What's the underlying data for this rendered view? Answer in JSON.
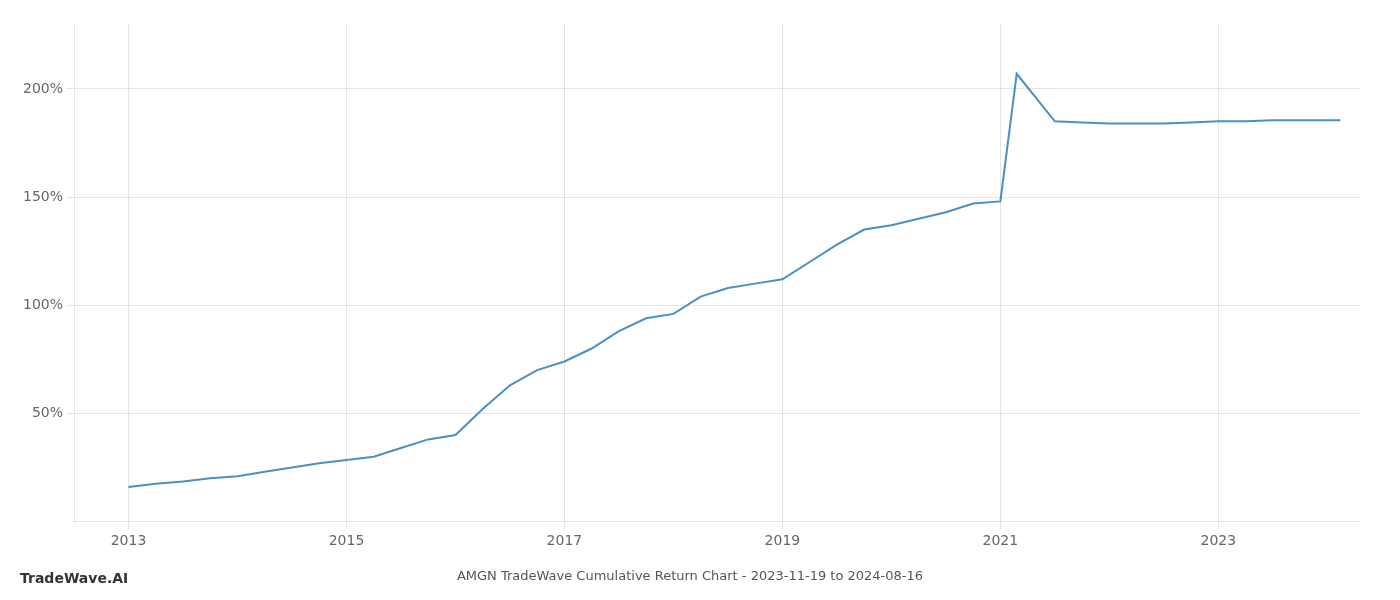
{
  "chart_data": {
    "type": "line",
    "title": "AMGN TradeWave Cumulative Return Chart - 2023-11-19 to 2024-08-16",
    "annotations": [
      "TradeWave.AI"
    ],
    "x": [
      2013.0,
      2013.25,
      2013.5,
      2013.75,
      2014.0,
      2014.25,
      2014.5,
      2014.75,
      2015.0,
      2015.25,
      2015.5,
      2015.75,
      2016.0,
      2016.25,
      2016.5,
      2016.75,
      2017.0,
      2017.25,
      2017.5,
      2017.75,
      2018.0,
      2018.25,
      2018.5,
      2018.75,
      2019.0,
      2019.25,
      2019.5,
      2019.75,
      2020.0,
      2020.25,
      2020.5,
      2020.75,
      2021.0,
      2021.15,
      2021.5,
      2021.75,
      2022.0,
      2022.25,
      2022.5,
      2022.75,
      2023.0,
      2023.25,
      2023.5,
      2023.75,
      2024.0,
      2024.12
    ],
    "values": [
      16.0,
      17.5,
      18.5,
      20.0,
      21.0,
      23.0,
      25.0,
      27.0,
      28.5,
      30.0,
      34.0,
      38.0,
      40.0,
      52.0,
      63.0,
      70.0,
      74.0,
      80.0,
      88.0,
      94.0,
      96.0,
      104.0,
      108.0,
      110.0,
      112.0,
      120.0,
      128.0,
      135.0,
      137.0,
      140.0,
      143.0,
      147.0,
      148.0,
      207.0,
      185.0,
      184.5,
      184.0,
      184.0,
      184.0,
      184.5,
      185.0,
      185.0,
      185.5,
      185.5,
      185.5,
      185.5
    ],
    "color": "#4a90c4",
    "xlim": [
      2012.5,
      2024.3
    ],
    "ylim": [
      0,
      230
    ],
    "xticks": [
      2013,
      2015,
      2017,
      2019,
      2021,
      2023
    ],
    "yticks": [
      {
        "value": 50,
        "label": "50%"
      },
      {
        "value": 100,
        "label": "100%"
      },
      {
        "value": 150,
        "label": "150%"
      },
      {
        "value": 200,
        "label": "200%"
      }
    ],
    "grid": true
  }
}
